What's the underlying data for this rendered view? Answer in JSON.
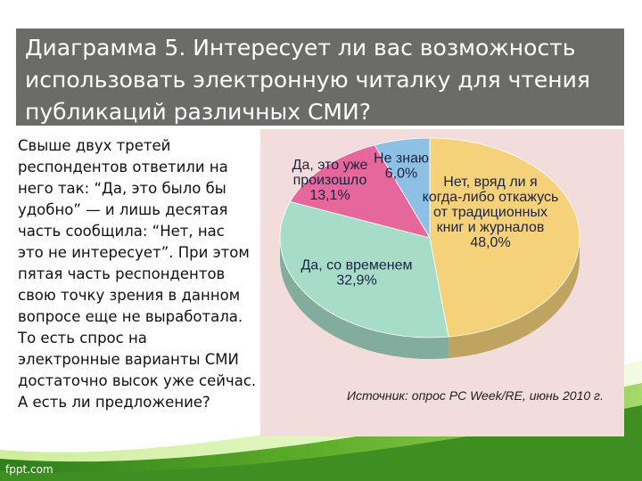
{
  "slide": {
    "title": "Диаграмма 5. Интересует ли вас возможность использовать электронную читалку для чтения публикаций различных СМИ?",
    "body": "Свыше двух третей\nреспондентов ответили на\nнего так: “Да, это было бы\nудобно” — и лишь десятая\nчасть сообщила: “Нет, нас\nэто не интересует”. При этом\nпятая часть респондентов\nсвою точку зрения в данном\nвопросе еще не выработала.\nТо есть спрос на\nэлектронные варианты СМИ\nдостаточно высок уже сейчас.\nА есть ли предложение?",
    "logo": "fppt.com"
  },
  "chart_data": {
    "type": "pie",
    "style": "3d",
    "slices": [
      {
        "label": [
          "Нет, вряд ли я",
          "когда-либо откажусь",
          "от традиционных",
          "книг и журналов"
        ],
        "value": 48.0,
        "value_label": "48,0%",
        "color": "#f5d27a"
      },
      {
        "label": [
          "Да, со временем"
        ],
        "value": 32.9,
        "value_label": "32,9%",
        "color": "#a7dcc9"
      },
      {
        "label": [
          "Да, это уже",
          "произошло"
        ],
        "value": 13.1,
        "value_label": "13,1%",
        "color": "#e6679b"
      },
      {
        "label": [
          "Не знаю"
        ],
        "value": 6.0,
        "value_label": "6,0%",
        "color": "#8ec0e6"
      }
    ],
    "source": "Источник: опрос PC Week/RE, июнь 2010 г.",
    "panel_color": "#f3dcdc"
  }
}
